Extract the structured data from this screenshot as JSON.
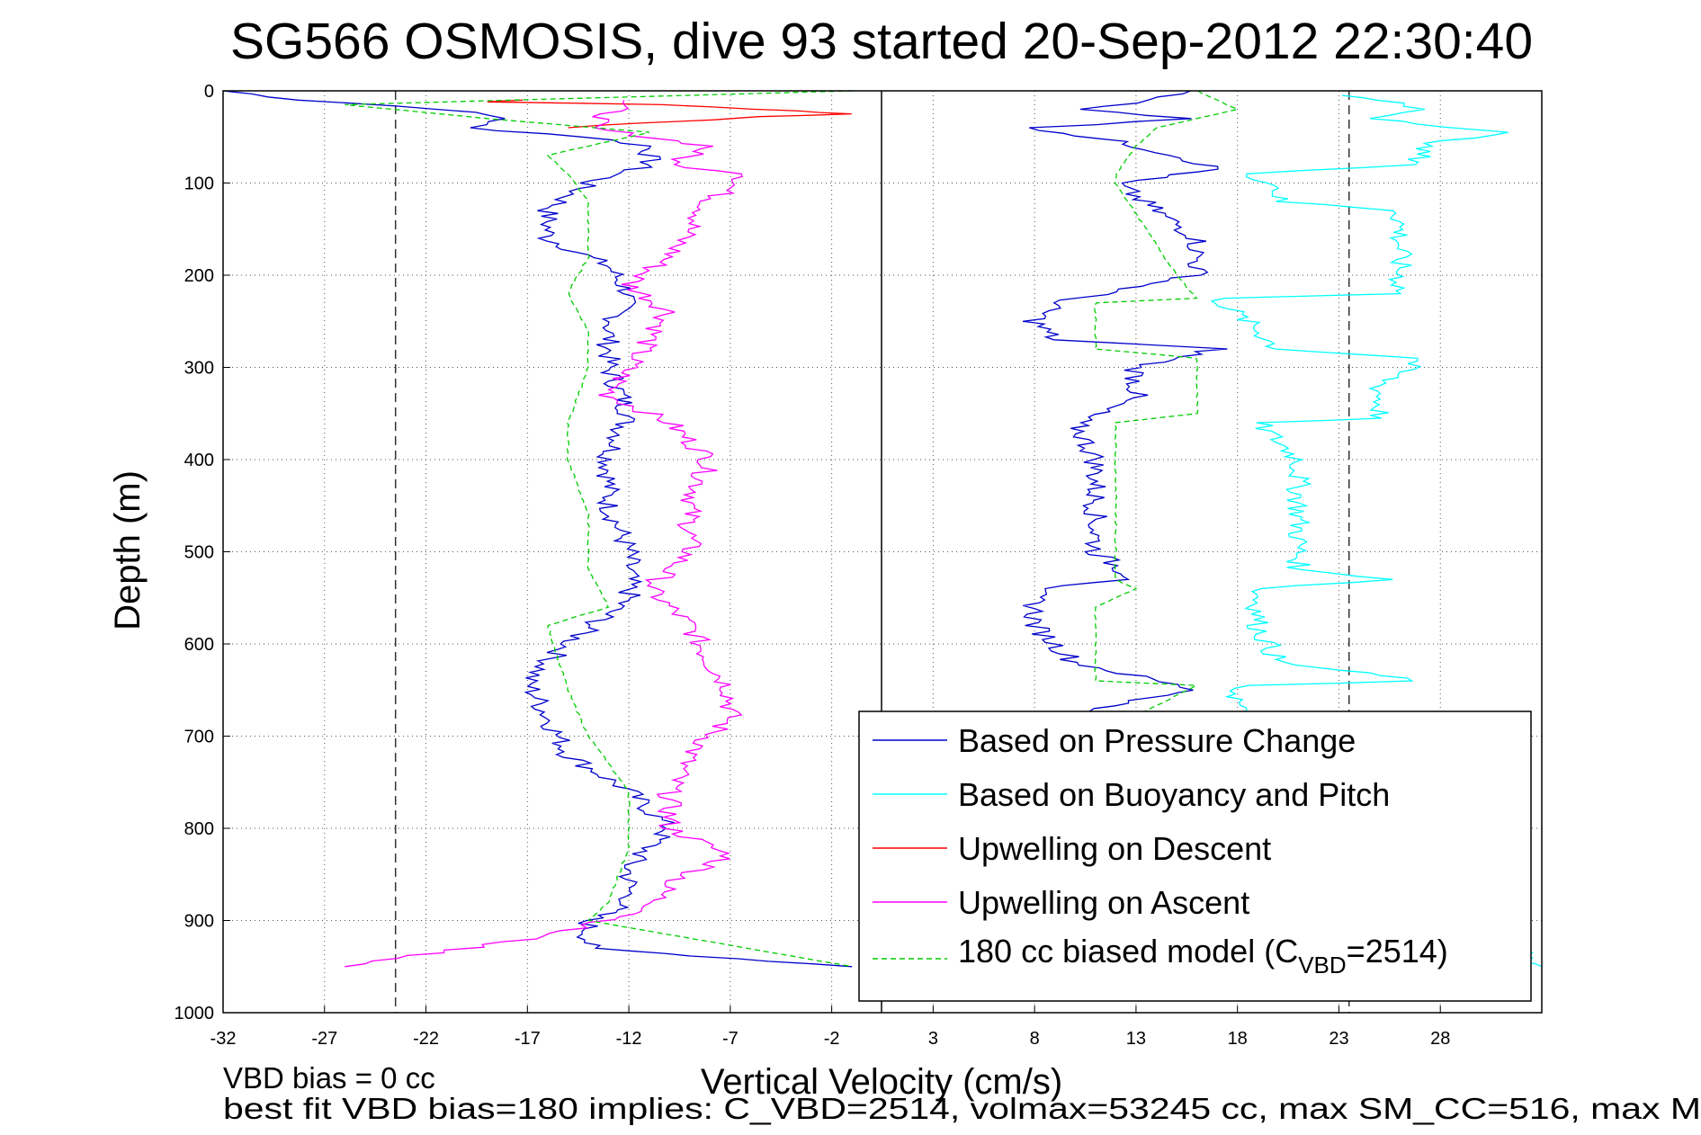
{
  "chart_data": {
    "type": "line",
    "title": "SG566 OSMOSIS, dive 93 started 20-Sep-2012 22:30:40",
    "xlabel": "Vertical Velocity (cm/s)",
    "ylabel": "Depth (m)",
    "xlim": [
      -32,
      33
    ],
    "ylim": [
      0,
      1000
    ],
    "y_reversed": true,
    "grid": true,
    "xticks": [
      "-32",
      "-27",
      "-22",
      "-17",
      "-12",
      "-7",
      "-2",
      "3",
      "8",
      "13",
      "18",
      "23",
      "28"
    ],
    "yticks": [
      "0",
      "100",
      "200",
      "300",
      "400",
      "500",
      "600",
      "700",
      "800",
      "900",
      "1000"
    ],
    "reference_lines": [
      {
        "x": -23.5,
        "style": "dashed"
      },
      {
        "x": 23.5,
        "style": "dashed"
      },
      {
        "x": 0,
        "style": "solid"
      }
    ],
    "legend": {
      "position": "bottom-right",
      "entries": [
        {
          "name": "Based on Pressure Change",
          "color": "#0000cc"
        },
        {
          "name": "Based on Buoyancy and Pitch",
          "color": "#00ffff"
        },
        {
          "name": "Upwelling on Descent",
          "color": "#ff0000"
        },
        {
          "name": "Upwelling on Ascent",
          "color": "#ff00ff"
        },
        {
          "name_prefix": "180 cc biased model (C",
          "name_sub": "VBD",
          "name_suffix": "=2514)",
          "color": "#00cc00",
          "dashed": true
        }
      ]
    },
    "series": [
      {
        "name": "Based on Pressure Change",
        "panel": "descent",
        "color": "#0000cc",
        "depth": [
          0,
          10,
          20,
          30,
          40,
          50,
          60,
          80,
          100,
          130,
          160,
          190,
          220,
          260,
          300,
          350,
          400,
          450,
          500,
          550,
          600,
          640,
          680,
          720,
          760,
          800,
          840,
          880,
          900,
          930,
          950
        ],
        "values": [
          -32,
          -28,
          -21,
          -18,
          -20,
          -14,
          -11,
          -11,
          -14,
          -16,
          -16,
          -13,
          -12,
          -13,
          -13,
          -12,
          -13,
          -13,
          -12,
          -12,
          -15,
          -17,
          -16,
          -15,
          -12,
          -10,
          -12,
          -12,
          -14,
          -14,
          -1
        ]
      },
      {
        "name": "Upwelling on Descent",
        "panel": "descent",
        "color": "#ff0000",
        "depth": [
          10,
          12,
          15,
          20,
          22,
          25,
          28,
          35,
          40
        ],
        "values": [
          -17,
          -19,
          -10,
          -6,
          -3,
          -1,
          -5,
          -11,
          -15
        ]
      },
      {
        "name": "Upwelling on Ascent",
        "panel": "descent",
        "color": "#ff00ff",
        "depth": [
          10,
          40,
          60,
          80,
          90,
          120,
          150,
          180,
          210,
          240,
          270,
          300,
          330,
          360,
          400,
          450,
          500,
          540,
          580,
          620,
          650,
          680,
          720,
          760,
          800,
          830,
          860,
          890,
          920,
          950
        ],
        "values": [
          -12,
          -14,
          -8,
          -10,
          -6,
          -8,
          -9,
          -10,
          -12,
          -10,
          -11,
          -12,
          -13,
          -10,
          -8,
          -9,
          -9,
          -11,
          -9,
          -8,
          -7,
          -7,
          -9,
          -10,
          -10,
          -7,
          -10,
          -11,
          -17,
          -26
        ]
      },
      {
        "name": "180 cc biased model (C_VBD=2514)",
        "panel": "descent",
        "color": "#00cc00",
        "dashed": true,
        "depth": [
          0,
          15,
          30,
          45,
          60,
          70,
          90,
          120,
          180,
          220,
          260,
          300,
          360,
          400,
          460,
          520,
          560,
          580,
          650,
          700,
          760,
          820,
          880,
          900,
          950
        ],
        "values": [
          -1,
          -26,
          -19,
          -11,
          -14,
          -16,
          -15,
          -14,
          -14,
          -15,
          -14,
          -14,
          -15,
          -15,
          -14,
          -14,
          -13,
          -16,
          -15,
          -14,
          -12,
          -12,
          -13,
          -14,
          -1
        ]
      },
      {
        "name": "Based on Pressure Change",
        "panel": "ascent",
        "color": "#0000cc",
        "depth": [
          0,
          10,
          20,
          30,
          40,
          55,
          70,
          85,
          100,
          130,
          160,
          200,
          230,
          250,
          270,
          280,
          300,
          330,
          360,
          400,
          450,
          500,
          530,
          540,
          580,
          620,
          650,
          670,
          685
        ],
        "values": [
          16,
          14,
          10,
          16,
          8,
          12,
          15,
          17,
          12,
          14,
          16,
          16,
          9,
          8,
          9,
          17,
          13,
          13,
          10,
          11,
          11,
          11,
          13,
          8,
          8,
          10,
          16,
          11,
          11
        ]
      },
      {
        "name": "Based on Buoyancy and Pitch",
        "panel": "ascent",
        "color": "#00ffff",
        "depth": [
          5,
          10,
          20,
          30,
          45,
          60,
          80,
          90,
          100,
          120,
          130,
          180,
          220,
          225,
          260,
          280,
          290,
          320,
          355,
          360,
          400,
          450,
          520,
          530,
          540,
          580,
          620,
          640,
          645,
          700,
          950
        ],
        "values": [
          23,
          25,
          27,
          25,
          31,
          27,
          27,
          18,
          20,
          20,
          26,
          26,
          26,
          17,
          19,
          20,
          27,
          25,
          25,
          19,
          21,
          21,
          21,
          26,
          19,
          19,
          20,
          27,
          18,
          18,
          33
        ]
      },
      {
        "name": "180 cc biased model (C_VBD=2514)",
        "panel": "ascent",
        "color": "#00cc00",
        "dashed": true,
        "depth": [
          0,
          20,
          40,
          60,
          90,
          100,
          200,
          225,
          230,
          280,
          290,
          350,
          360,
          450,
          530,
          540,
          560,
          640,
          645,
          700
        ],
        "values": [
          16,
          18,
          14,
          13,
          12,
          12,
          15,
          16,
          11,
          11,
          16,
          16,
          12,
          12,
          12,
          13,
          11,
          11,
          16,
          11
        ]
      }
    ]
  },
  "notes": {
    "line1": "VBD bias = 0 cc",
    "line2": "best fit VBD bias=180 implies: C_VBD=2514, volmax=53245 cc, max SM_CC=516, max M"
  }
}
